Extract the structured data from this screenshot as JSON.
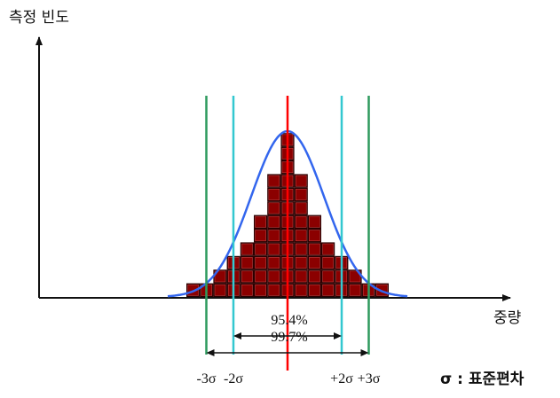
{
  "axes": {
    "y_label": "측정 빈도",
    "x_label": "중량"
  },
  "histogram": {
    "bins": [
      "-7",
      "-6",
      "-5",
      "-4",
      "-3",
      "-2",
      "-1",
      "0",
      "1",
      "2",
      "3",
      "4",
      "5",
      "6",
      "7"
    ],
    "counts": [
      1,
      1,
      2,
      3,
      4,
      6,
      9,
      12,
      9,
      6,
      4,
      3,
      2,
      1,
      1
    ],
    "block_color": "#8b0000"
  },
  "curve": {
    "color": "#3366ee"
  },
  "sigma_lines": [
    {
      "label": "-3σ",
      "k": -3,
      "color": "#2e9a5e"
    },
    {
      "label": "-2σ",
      "k": -2,
      "color": "#33c8d0"
    },
    {
      "label": "",
      "k": 0,
      "color": "#ff0000"
    },
    {
      "label": "+2σ",
      "k": 2,
      "color": "#33c8d0"
    },
    {
      "label": "+3σ",
      "k": 3,
      "color": "#2e9a5e"
    }
  ],
  "ranges": [
    {
      "label": "95.4%",
      "from": -2,
      "to": 2
    },
    {
      "label": "99.7%",
      "from": -3,
      "to": 3
    }
  ],
  "legend": {
    "text": "σ : 표준편차"
  }
}
